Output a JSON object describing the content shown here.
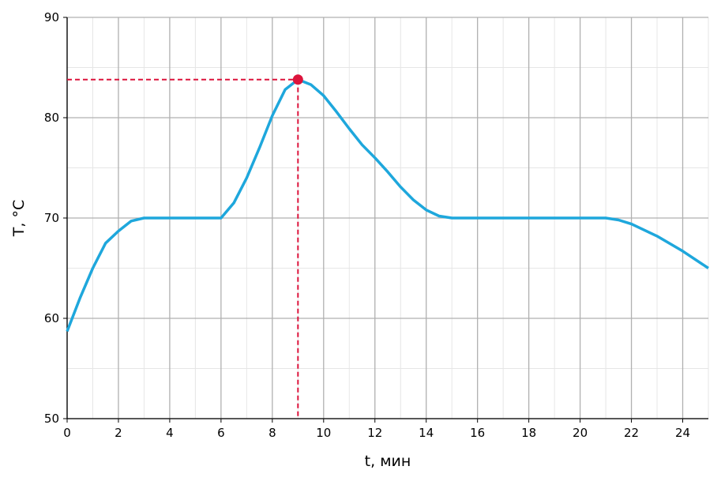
{
  "chart_data": {
    "type": "line",
    "xlabel": "t, мин",
    "ylabel": "T, °C",
    "x": [
      0,
      0.5,
      1,
      1.5,
      2,
      2.5,
      3,
      4,
      5,
      6,
      6.5,
      7,
      7.5,
      8,
      8.5,
      9,
      9.5,
      10,
      10.5,
      11,
      11.5,
      12,
      12.5,
      13,
      13.5,
      14,
      14.5,
      15,
      16,
      17,
      18,
      19,
      20,
      21,
      21.5,
      22,
      23,
      24,
      25
    ],
    "values": [
      58.7,
      62,
      65,
      67.5,
      68.7,
      69.7,
      70,
      70,
      70,
      70,
      71.5,
      74,
      77,
      80.2,
      82.8,
      83.8,
      83.3,
      82.2,
      80.6,
      78.9,
      77.3,
      76,
      74.6,
      73.1,
      71.8,
      70.8,
      70.2,
      70,
      70,
      70,
      70,
      70,
      70,
      70,
      69.8,
      69.4,
      68.2,
      66.7,
      65
    ],
    "color": "#1ea7dc",
    "highlight": {
      "x": 9,
      "y": 83.8,
      "color": "#dc143c"
    },
    "xlim": [
      0,
      25
    ],
    "ylim": [
      50,
      90
    ],
    "xticks": [
      0,
      2,
      4,
      6,
      8,
      10,
      12,
      14,
      16,
      18,
      20,
      22,
      24
    ],
    "yticks": [
      50,
      60,
      70,
      80,
      90
    ],
    "x_minor_ticks": [
      1,
      3,
      5,
      7,
      9,
      11,
      13,
      15,
      17,
      19,
      21,
      23,
      25
    ],
    "y_minor_ticks": [
      55,
      65,
      75,
      85
    ],
    "grid": true
  }
}
